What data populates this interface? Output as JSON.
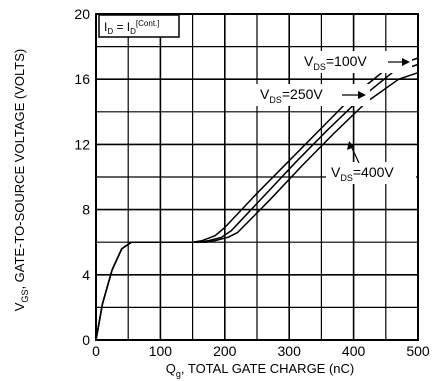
{
  "chart_data": {
    "type": "line",
    "xlabel_main": "Q",
    "xlabel_sub": "g",
    "xlabel_rest": ", TOTAL GATE CHARGE (nC)",
    "ylabel_main": "V",
    "ylabel_sub": "GS",
    "ylabel_rest": ", GATE-TO-SOURCE VOLTAGE (VOLTS)",
    "xlim": [
      0,
      500
    ],
    "ylim": [
      0,
      20
    ],
    "xticks": [
      0,
      100,
      200,
      300,
      400,
      500
    ],
    "yticks": [
      0,
      4,
      8,
      12,
      16,
      20
    ],
    "xtick_labels": [
      "0",
      "100",
      "200",
      "300",
      "400",
      "500"
    ],
    "ytick_labels": [
      "0",
      "4",
      "8",
      "12",
      "16",
      "20"
    ],
    "grid": true,
    "box": {
      "main": "I",
      "sub1": "D",
      "eq": " = I",
      "sub2": "D",
      "sup": "[Cont.]"
    },
    "series": [
      {
        "name": "VDS=100V",
        "label_main": "V",
        "label_sub": "DS",
        "label_rest": "=100V",
        "x": [
          0,
          10,
          25,
          40,
          55,
          70,
          150,
          165,
          185,
          200,
          250,
          300,
          350,
          400,
          450,
          500
        ],
        "y": [
          0,
          2.2,
          4.3,
          5.6,
          6.0,
          6.0,
          6.0,
          6.1,
          6.4,
          6.9,
          9.0,
          11.0,
          13.0,
          15.0,
          16.6,
          17.3
        ]
      },
      {
        "name": "VDS=250V",
        "label_main": "V",
        "label_sub": "DS",
        "label_rest": "=250V",
        "x": [
          0,
          10,
          25,
          40,
          55,
          70,
          160,
          175,
          195,
          210,
          260,
          310,
          360,
          410,
          460,
          500
        ],
        "y": [
          0,
          2.2,
          4.3,
          5.6,
          6.0,
          6.0,
          6.0,
          6.1,
          6.3,
          6.7,
          8.8,
          10.9,
          12.9,
          14.8,
          16.4,
          16.9
        ]
      },
      {
        "name": "VDS=400V",
        "label_main": "V",
        "label_sub": "DS",
        "label_rest": "=400V",
        "x": [
          0,
          10,
          25,
          40,
          55,
          70,
          170,
          185,
          205,
          220,
          270,
          320,
          370,
          420,
          470,
          500
        ],
        "y": [
          0,
          2.2,
          4.3,
          5.6,
          6.0,
          6.0,
          6.0,
          6.1,
          6.3,
          6.6,
          8.6,
          10.7,
          12.7,
          14.6,
          16.0,
          16.4
        ]
      }
    ]
  }
}
